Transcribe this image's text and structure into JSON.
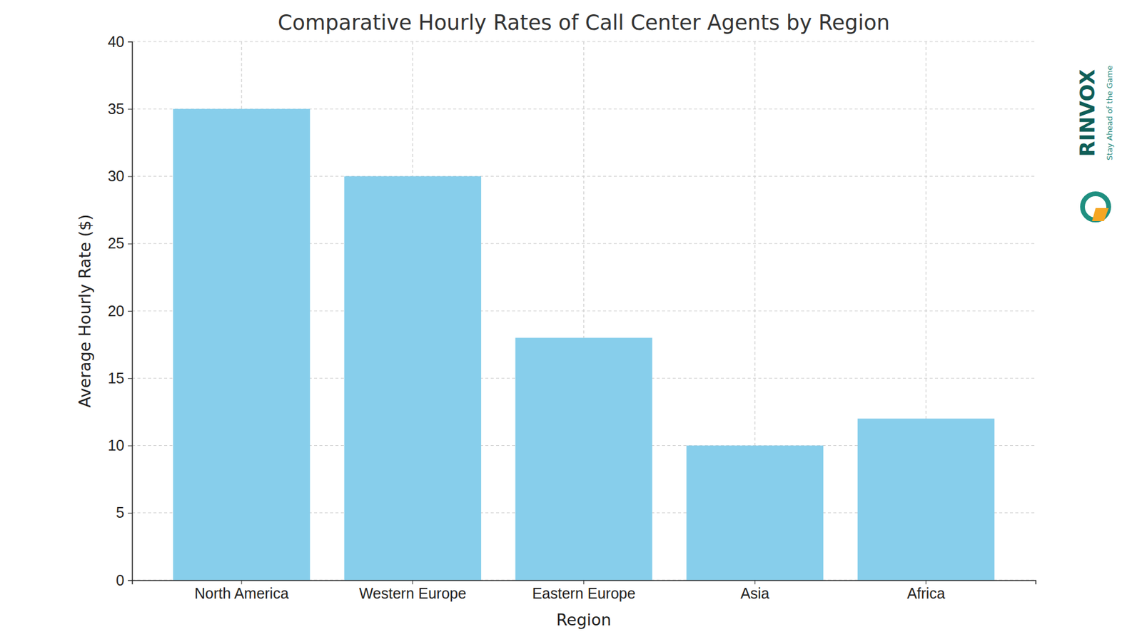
{
  "chart_data": {
    "type": "bar",
    "title": "Comparative Hourly Rates of Call Center Agents by Region",
    "x_label": "Region",
    "y_label": "Average Hourly Rate ($)",
    "categories": [
      "North America",
      "Western Europe",
      "Eastern Europe",
      "Asia",
      "Africa"
    ],
    "values": [
      35,
      30,
      18,
      10,
      12
    ],
    "color": "#87ceeb",
    "ylim": [
      0,
      40
    ],
    "yticks": [
      0,
      5,
      10,
      15,
      20,
      25,
      30,
      35,
      40
    ],
    "grid": true,
    "annotations": [
      "RINVOX",
      "Stay Ahead of the Game"
    ]
  }
}
